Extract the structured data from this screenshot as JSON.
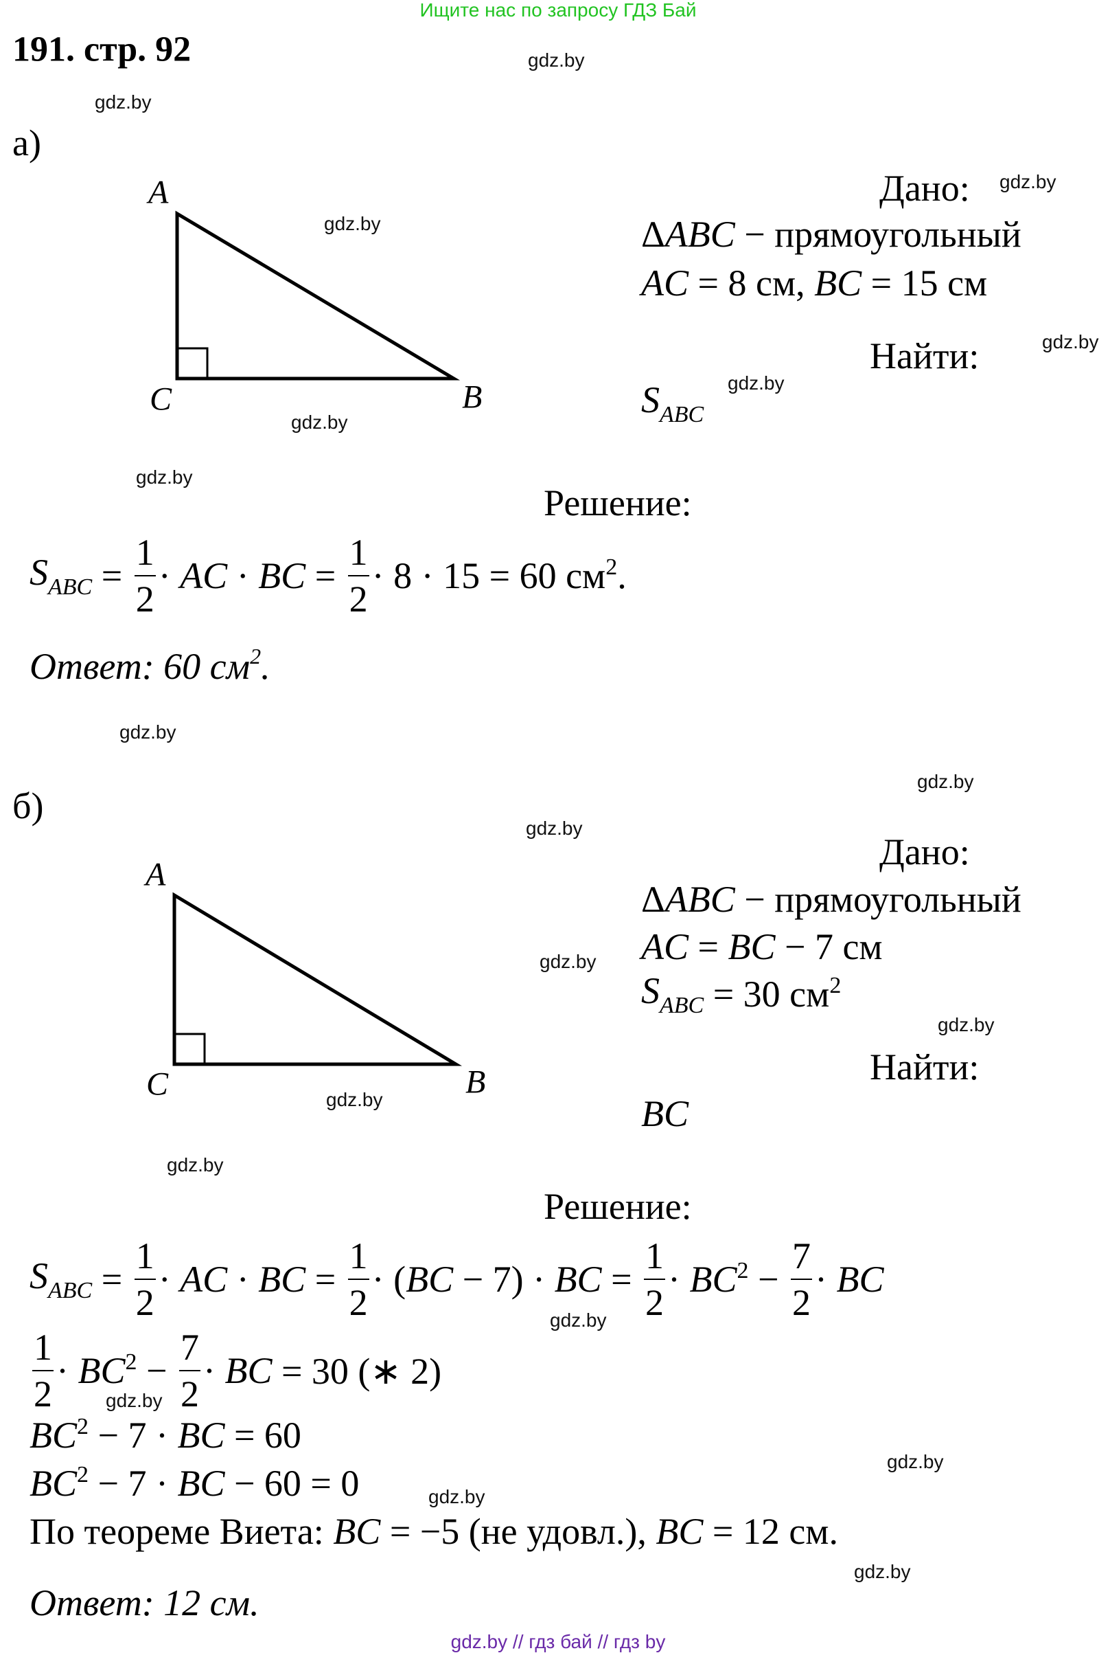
{
  "banner": "Ищите нас по запросу ГДЗ Бай",
  "title": "191. стр. 92",
  "watermark": "gdz.by",
  "footer": "gdz.by  //  гдз бай  //  гдз by",
  "colors": {
    "banner": "#22c322",
    "footer": "#6a2aa8"
  },
  "part_a": {
    "label": "а)",
    "vertices": {
      "a": "A",
      "b": "B",
      "c": "C"
    },
    "given_label": "Дано:",
    "given": [
      [
        {
          "r": "Δ"
        },
        {
          "i": "ABC"
        },
        {
          "r": " − прямоугольный"
        }
      ],
      [
        {
          "i": "AC"
        },
        {
          "r": " = 8 см, "
        },
        {
          "i": "BC"
        },
        {
          "r": " = 15 см"
        }
      ]
    ],
    "find_label": "Найти:",
    "find": [
      {
        "i": "S",
        "sub": "ABC"
      }
    ],
    "solution_label": "Решение:",
    "formula": [
      {
        "i": "S",
        "sub": "ABC"
      },
      {
        "r": " = "
      },
      {
        "num": "1",
        "den": "2"
      },
      {
        "r": "· "
      },
      {
        "i": "AC"
      },
      {
        "r": " · "
      },
      {
        "i": "BC"
      },
      {
        "r": " = "
      },
      {
        "num": "1",
        "den": "2"
      },
      {
        "r": "· 8 · 15 = 60 см",
        "sup": "2"
      },
      {
        "r": "."
      }
    ],
    "answer": {
      "text": "Ответ: 60 см",
      "sup": "2",
      "end": "."
    }
  },
  "part_b": {
    "label": "б)",
    "vertices": {
      "a": "A",
      "b": "B",
      "c": "C"
    },
    "given_label": "Дано:",
    "given": [
      [
        {
          "r": "Δ"
        },
        {
          "i": "ABC"
        },
        {
          "r": " − прямоугольный"
        }
      ],
      [
        {
          "i": "AC"
        },
        {
          "r": " = "
        },
        {
          "i": "BC"
        },
        {
          "r": " − 7 см"
        }
      ],
      [
        {
          "i": "S",
          "sub": "ABC"
        },
        {
          "r": " = 30 см",
          "sup": "2"
        }
      ]
    ],
    "find_label": "Найти:",
    "find": [
      {
        "i": "BC"
      }
    ],
    "solution_label": "Решение:",
    "lines": [
      [
        {
          "i": "S",
          "sub": "ABC"
        },
        {
          "r": " = "
        },
        {
          "num": "1",
          "den": "2"
        },
        {
          "r": "· "
        },
        {
          "i": "AC"
        },
        {
          "r": " · "
        },
        {
          "i": "BC"
        },
        {
          "r": " = "
        },
        {
          "num": "1",
          "den": "2"
        },
        {
          "r": "· ("
        },
        {
          "i": "BC"
        },
        {
          "r": " − 7) · "
        },
        {
          "i": "BC"
        },
        {
          "r": " = "
        },
        {
          "num": "1",
          "den": "2"
        },
        {
          "r": "· "
        },
        {
          "i": "BC",
          "sup": "2"
        },
        {
          "r": " − "
        },
        {
          "num": "7",
          "den": "2"
        },
        {
          "r": "· "
        },
        {
          "i": "BC"
        }
      ],
      [
        {
          "num": "1",
          "den": "2"
        },
        {
          "r": "· "
        },
        {
          "i": "BC",
          "sup": "2"
        },
        {
          "r": " − "
        },
        {
          "num": "7",
          "den": "2"
        },
        {
          "r": "· "
        },
        {
          "i": "BC"
        },
        {
          "r": " = 30 (∗ 2)"
        }
      ],
      [
        {
          "i": "BC",
          "sup": "2"
        },
        {
          "r": " − 7 · "
        },
        {
          "i": "BC"
        },
        {
          "r": " = 60"
        }
      ],
      [
        {
          "i": "BC",
          "sup": "2"
        },
        {
          "r": " − 7 · "
        },
        {
          "i": "BC"
        },
        {
          "r": " − 60 = 0"
        }
      ],
      [
        {
          "r": "По теореме Виета: "
        },
        {
          "i": "BC"
        },
        {
          "r": " = −5 (не удовл.), "
        },
        {
          "i": "BC"
        },
        {
          "r": " = 12 см."
        }
      ]
    ],
    "answer": {
      "text": "Ответ: 12 см."
    }
  }
}
